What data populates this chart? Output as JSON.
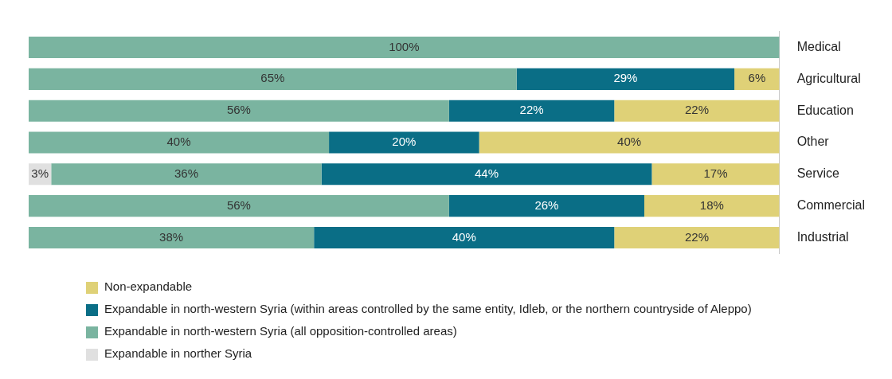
{
  "chart_data": {
    "type": "bar",
    "orientation": "horizontal",
    "stacked": true,
    "grid": false,
    "legend": "bottom",
    "tick_labels": "y",
    "categories": [
      "Medical",
      "Agricultural",
      "Education",
      "Other",
      "Service",
      "Commercial",
      "Industrial"
    ],
    "series": [
      {
        "name": "Expandable in norther Syria",
        "color": "#e0e0e0",
        "values": [
          null,
          null,
          null,
          null,
          3,
          null,
          null
        ],
        "value_labels": [
          null,
          null,
          null,
          null,
          "3%",
          null,
          null
        ]
      },
      {
        "name": "Expandable in north-western Syria (all opposition-controlled areas)",
        "color": "#7ab4a0",
        "values": [
          100,
          65,
          56,
          40,
          36,
          56,
          38
        ],
        "value_labels": [
          "100%",
          "65%",
          "56%",
          "40%",
          "36%",
          "56%",
          "38%"
        ]
      },
      {
        "name": "Expandable in north-western Syria (within areas controlled by the same entity, Idleb, or the northern countryside of Aleppo)",
        "color": "#0a6e86",
        "values": [
          null,
          29,
          22,
          20,
          44,
          26,
          40
        ],
        "value_labels": [
          null,
          "29%",
          "22%",
          "20%",
          "44%",
          "26%",
          "40%"
        ]
      },
      {
        "name": "Non-expandable",
        "color": "#dfd177",
        "values": [
          null,
          6,
          22,
          40,
          17,
          18,
          22
        ],
        "value_labels": [
          null,
          "6%",
          "22%",
          "40%",
          "17%",
          "18%",
          "22%"
        ]
      }
    ]
  }
}
